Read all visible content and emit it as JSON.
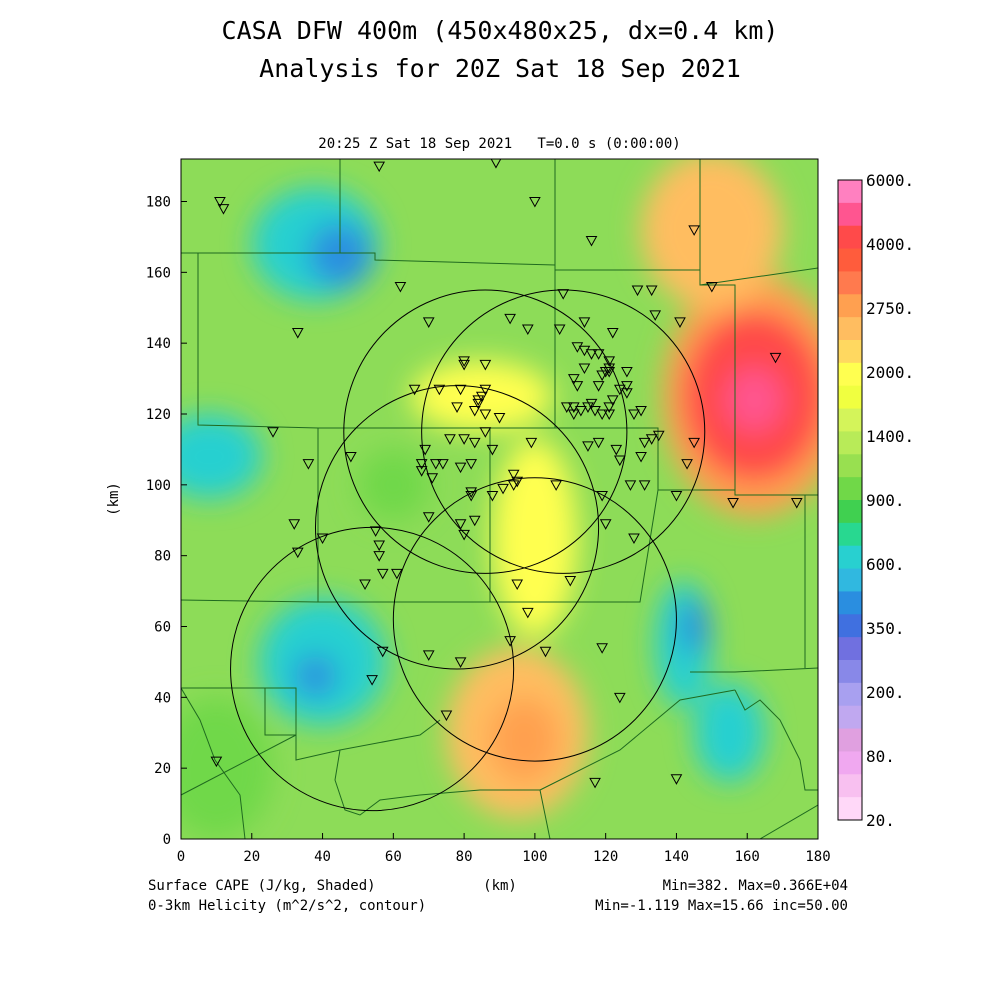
{
  "title_line1": "CASA DFW 400m (450x480x25, dx=0.4 km)",
  "title_line2": "Analysis for 20Z Sat 18 Sep 2021",
  "subtitle": "20:25 Z Sat 18 Sep 2021   T=0.0 s (0:00:00)",
  "x_axis": {
    "label": "(km)",
    "min": 0,
    "max": 180,
    "ticks": [
      0,
      20,
      40,
      60,
      80,
      100,
      120,
      140,
      160,
      180
    ]
  },
  "y_axis": {
    "label": "(km)",
    "min": 0,
    "max": 192,
    "ticks": [
      0,
      20,
      40,
      60,
      80,
      100,
      120,
      140,
      160,
      180
    ]
  },
  "colorbar": {
    "labels": [
      "6000.",
      "4000.",
      "2750.",
      "2000.",
      "1400.",
      "900.",
      "600.",
      "350.",
      "200.",
      "80.",
      "20."
    ],
    "colors": [
      "#ff80c0",
      "#ff5590",
      "#ff4a4a",
      "#ff5c3c",
      "#ff7a4e",
      "#ffa050",
      "#ffbd60",
      "#ffd860",
      "#ffff50",
      "#f0ff40",
      "#d4f45a",
      "#b8eb58",
      "#98e050",
      "#70d848",
      "#40d050",
      "#28d890",
      "#28d0d0",
      "#30b8e0",
      "#2a8ee0",
      "#4070e0",
      "#7070e0",
      "#8888e8",
      "#a8a0f0",
      "#c0a8f0",
      "#e0a0e0",
      "#f0a8f0",
      "#f8c0f0",
      "#ffd8f8"
    ]
  },
  "footer": {
    "left1": "Surface CAPE (J/kg, Shaded)",
    "left2": "0-3km Helicity (m^2/s^2, contour)",
    "center": "(km)",
    "right1": "Min=382. Max=0.366E+04",
    "right2": "Min=-1.119 Max=15.66 inc=50.00"
  },
  "map": {
    "cape_blobs": [
      {
        "x": 162,
        "y": 125,
        "rx": 26,
        "ry": 34,
        "level": "orange"
      },
      {
        "x": 162,
        "y": 125,
        "rx": 20,
        "ry": 24,
        "level": "red"
      },
      {
        "x": 162,
        "y": 124,
        "rx": 8,
        "ry": 9,
        "level": "pink"
      },
      {
        "x": 150,
        "y": 172,
        "rx": 20,
        "ry": 22,
        "level": "lightorange"
      },
      {
        "x": 95,
        "y": 30,
        "rx": 20,
        "ry": 24,
        "level": "lightorange"
      },
      {
        "x": 97,
        "y": 28,
        "rx": 10,
        "ry": 12,
        "level": "orange"
      },
      {
        "x": 85,
        "y": 125,
        "rx": 20,
        "ry": 10,
        "level": "yellow"
      },
      {
        "x": 100,
        "y": 85,
        "rx": 12,
        "ry": 28,
        "level": "yellow"
      },
      {
        "x": 38,
        "y": 168,
        "rx": 18,
        "ry": 16,
        "level": "cyan"
      },
      {
        "x": 45,
        "y": 165,
        "rx": 9,
        "ry": 9,
        "level": "blue"
      },
      {
        "x": 40,
        "y": 50,
        "rx": 18,
        "ry": 18,
        "level": "cyan"
      },
      {
        "x": 38,
        "y": 46,
        "rx": 6,
        "ry": 6,
        "level": "blue"
      },
      {
        "x": 8,
        "y": 108,
        "rx": 15,
        "ry": 12,
        "level": "cyan"
      },
      {
        "x": 142,
        "y": 55,
        "rx": 8,
        "ry": 18,
        "level": "cyan"
      },
      {
        "x": 155,
        "y": 30,
        "rx": 10,
        "ry": 14,
        "level": "cyan"
      },
      {
        "x": 145,
        "y": 60,
        "rx": 4,
        "ry": 8,
        "level": "blue"
      },
      {
        "x": 10,
        "y": 20,
        "rx": 16,
        "ry": 20,
        "level": "green"
      },
      {
        "x": 60,
        "y": 100,
        "rx": 10,
        "ry": 10,
        "level": "green"
      }
    ],
    "radar_circles": [
      {
        "x": 86,
        "y": 115,
        "r": 40
      },
      {
        "x": 108,
        "y": 115,
        "r": 40
      },
      {
        "x": 78,
        "y": 88,
        "r": 40
      },
      {
        "x": 100,
        "y": 62,
        "r": 40
      },
      {
        "x": 54,
        "y": 48,
        "r": 40
      }
    ],
    "stations": [
      [
        10,
        22
      ],
      [
        11,
        180
      ],
      [
        12,
        178
      ],
      [
        26,
        115
      ],
      [
        32,
        89
      ],
      [
        33,
        81
      ],
      [
        33,
        143
      ],
      [
        36,
        106
      ],
      [
        40,
        85
      ],
      [
        48,
        108
      ],
      [
        52,
        72
      ],
      [
        54,
        45
      ],
      [
        55,
        87
      ],
      [
        56,
        83
      ],
      [
        56,
        80
      ],
      [
        57,
        75
      ],
      [
        57,
        53
      ],
      [
        61,
        75
      ],
      [
        62,
        156
      ],
      [
        66,
        127
      ],
      [
        68,
        104
      ],
      [
        68,
        106
      ],
      [
        69,
        110
      ],
      [
        70,
        146
      ],
      [
        70,
        91
      ],
      [
        70,
        52
      ],
      [
        71,
        102
      ],
      [
        72,
        106
      ],
      [
        73,
        127
      ],
      [
        74,
        106
      ],
      [
        75,
        35
      ],
      [
        76,
        113
      ],
      [
        78,
        122
      ],
      [
        79,
        127
      ],
      [
        79,
        105
      ],
      [
        79,
        89
      ],
      [
        79,
        50
      ],
      [
        80,
        86
      ],
      [
        80,
        134
      ],
      [
        80,
        135
      ],
      [
        80,
        113
      ],
      [
        82,
        106
      ],
      [
        82,
        97
      ],
      [
        82,
        98
      ],
      [
        83,
        112
      ],
      [
        83,
        121
      ],
      [
        83,
        90
      ],
      [
        84,
        123
      ],
      [
        84,
        124
      ],
      [
        85,
        125
      ],
      [
        86,
        127
      ],
      [
        86,
        115
      ],
      [
        86,
        120
      ],
      [
        86,
        134
      ],
      [
        88,
        110
      ],
      [
        88,
        97
      ],
      [
        90,
        119
      ],
      [
        91,
        99
      ],
      [
        93,
        56
      ],
      [
        93,
        147
      ],
      [
        94,
        103
      ],
      [
        94,
        100
      ],
      [
        95,
        101
      ],
      [
        95,
        72
      ],
      [
        98,
        144
      ],
      [
        98,
        64
      ],
      [
        99,
        112
      ],
      [
        100,
        180
      ],
      [
        103,
        53
      ],
      [
        106,
        100
      ],
      [
        107,
        144
      ],
      [
        108,
        154
      ],
      [
        109,
        122
      ],
      [
        110,
        73
      ],
      [
        111,
        120
      ],
      [
        111,
        130
      ],
      [
        111,
        122
      ],
      [
        112,
        139
      ],
      [
        112,
        128
      ],
      [
        113,
        121
      ],
      [
        114,
        146
      ],
      [
        114,
        138
      ],
      [
        114,
        133
      ],
      [
        115,
        111
      ],
      [
        115,
        122
      ],
      [
        116,
        169
      ],
      [
        116,
        137
      ],
      [
        116,
        123
      ],
      [
        117,
        121
      ],
      [
        117,
        16
      ],
      [
        118,
        137
      ],
      [
        118,
        128
      ],
      [
        118,
        112
      ],
      [
        119,
        120
      ],
      [
        119,
        97
      ],
      [
        119,
        131
      ],
      [
        119,
        54
      ],
      [
        120,
        89
      ],
      [
        120,
        132
      ],
      [
        121,
        132
      ],
      [
        121,
        133
      ],
      [
        121,
        120
      ],
      [
        121,
        135
      ],
      [
        121,
        122
      ],
      [
        122,
        124
      ],
      [
        122,
        143
      ],
      [
        123,
        110
      ],
      [
        124,
        127
      ],
      [
        124,
        107
      ],
      [
        124,
        40
      ],
      [
        126,
        132
      ],
      [
        126,
        128
      ],
      [
        126,
        126
      ],
      [
        127,
        100
      ],
      [
        128,
        85
      ],
      [
        128,
        120
      ],
      [
        129,
        155
      ],
      [
        130,
        121
      ],
      [
        130,
        108
      ],
      [
        131,
        112
      ],
      [
        131,
        100
      ],
      [
        133,
        155
      ],
      [
        133,
        113
      ],
      [
        134,
        148
      ],
      [
        135,
        114
      ],
      [
        140,
        17
      ],
      [
        140,
        97
      ],
      [
        141,
        146
      ],
      [
        143,
        106
      ],
      [
        145,
        112
      ],
      [
        145,
        172
      ],
      [
        150,
        156
      ],
      [
        156,
        95
      ],
      [
        168,
        136
      ],
      [
        174,
        95
      ],
      [
        89,
        191
      ],
      [
        56,
        190
      ]
    ]
  }
}
